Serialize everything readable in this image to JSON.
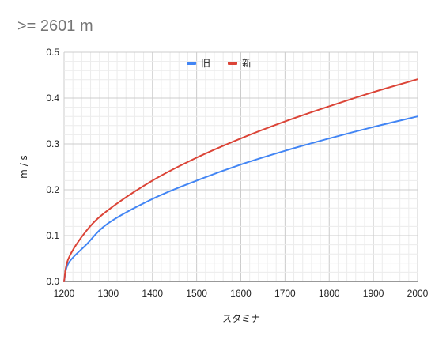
{
  "chart_data": {
    "type": "line",
    "title": ">= 2601 m",
    "xlabel": "スタミナ",
    "ylabel": "m / s",
    "xlim": [
      1200,
      2000
    ],
    "ylim": [
      0,
      0.5
    ],
    "x_ticks": [
      "1200",
      "1300",
      "1400",
      "1500",
      "1600",
      "1700",
      "1800",
      "1900",
      "2000"
    ],
    "y_ticks": [
      "0.0",
      "0.1",
      "0.2",
      "0.3",
      "0.4",
      "0.5"
    ],
    "grid": true,
    "legend_position": "top",
    "x": [
      1200,
      1210,
      1250,
      1300,
      1400,
      1500,
      1600,
      1700,
      1800,
      1900,
      2000
    ],
    "series": [
      {
        "name": "旧",
        "color": "#4285f4",
        "values": [
          0.0,
          0.04,
          0.08,
          0.127,
          0.18,
          0.22,
          0.255,
          0.285,
          0.312,
          0.337,
          0.36
        ]
      },
      {
        "name": "新",
        "color": "#db4437",
        "values": [
          0.0,
          0.05,
          0.11,
          0.156,
          0.22,
          0.27,
          0.312,
          0.349,
          0.382,
          0.413,
          0.441
        ]
      }
    ]
  }
}
